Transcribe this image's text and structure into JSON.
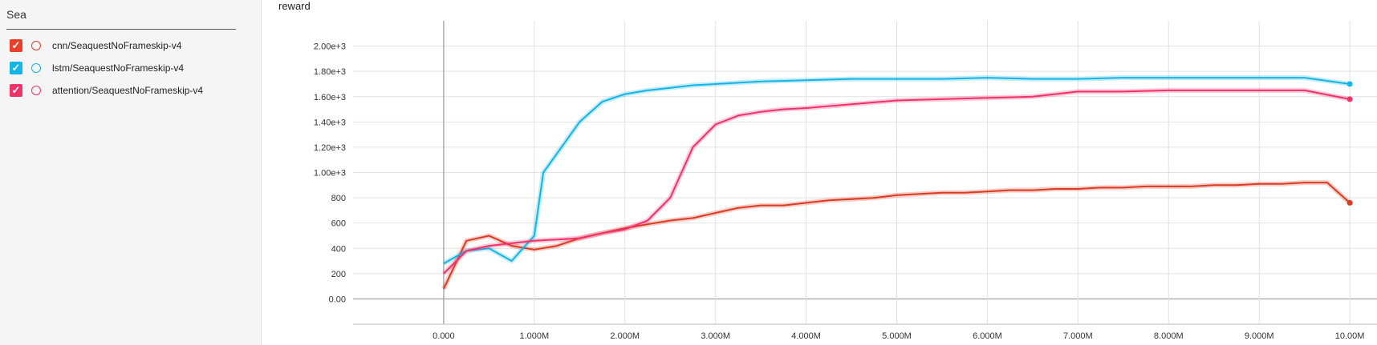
{
  "sidebar": {
    "filter_value": "Sea",
    "runs": [
      {
        "label": "cnn/SeaquestNoFrameskip-v4",
        "color": "#e8402a",
        "checked": true
      },
      {
        "label": "lstm/SeaquestNoFrameskip-v4",
        "color": "#12b5e5",
        "checked": true
      },
      {
        "label": "attention/SeaquestNoFrameskip-v4",
        "color": "#f0346a",
        "checked": true
      }
    ]
  },
  "chart_data": {
    "type": "line",
    "title": "reward",
    "xlim": [
      -1000000,
      10300000
    ],
    "ylim": [
      -200,
      2200
    ],
    "x_ticks": [
      0,
      1000000,
      2000000,
      3000000,
      4000000,
      5000000,
      6000000,
      7000000,
      8000000,
      9000000,
      10000000
    ],
    "x_tick_labels": [
      "0.000",
      "1.000M",
      "2.000M",
      "3.000M",
      "4.000M",
      "5.000M",
      "6.000M",
      "7.000M",
      "8.000M",
      "9.000M",
      "10.00M"
    ],
    "y_ticks": [
      0,
      200,
      400,
      600,
      800,
      1000,
      1200,
      1400,
      1600,
      1800,
      2000
    ],
    "y_tick_labels": [
      "0.00",
      "200",
      "400",
      "600",
      "800",
      "1.00e+3",
      "1.20e+3",
      "1.40e+3",
      "1.60e+3",
      "1.80e+3",
      "2.00e+3"
    ],
    "grid": true,
    "series": [
      {
        "name": "cnn/SeaquestNoFrameskip-v4",
        "color": "#dd3a22",
        "x": [
          0,
          250000,
          500000,
          750000,
          1000000,
          1250000,
          1500000,
          1750000,
          2000000,
          2250000,
          2500000,
          2750000,
          3000000,
          3250000,
          3500000,
          3750000,
          4000000,
          4250000,
          4500000,
          4750000,
          5000000,
          5250000,
          5500000,
          5750000,
          6000000,
          6250000,
          6500000,
          6750000,
          7000000,
          7250000,
          7500000,
          7750000,
          8000000,
          8250000,
          8500000,
          8750000,
          9000000,
          9250000,
          9500000,
          9750000,
          10000000
        ],
        "y": [
          80,
          460,
          500,
          420,
          390,
          420,
          480,
          520,
          560,
          590,
          620,
          640,
          680,
          720,
          740,
          740,
          760,
          780,
          790,
          800,
          820,
          830,
          840,
          840,
          850,
          860,
          860,
          870,
          870,
          880,
          880,
          890,
          890,
          890,
          900,
          900,
          910,
          910,
          920,
          920,
          760
        ]
      },
      {
        "name": "lstm/SeaquestNoFrameskip-v4",
        "color": "#12b5e5",
        "x": [
          0,
          250000,
          500000,
          750000,
          1000000,
          1100000,
          1250000,
          1500000,
          1750000,
          2000000,
          2250000,
          2500000,
          2750000,
          3000000,
          3500000,
          4000000,
          4500000,
          5000000,
          5500000,
          6000000,
          6500000,
          7000000,
          7500000,
          8000000,
          8500000,
          9000000,
          9500000,
          10000000
        ],
        "y": [
          280,
          380,
          400,
          300,
          500,
          1000,
          1150,
          1400,
          1560,
          1620,
          1650,
          1670,
          1690,
          1700,
          1720,
          1730,
          1740,
          1740,
          1740,
          1750,
          1740,
          1740,
          1750,
          1750,
          1750,
          1750,
          1750,
          1700
        ]
      },
      {
        "name": "attention/SeaquestNoFrameskip-v4",
        "color": "#f2316b",
        "x": [
          0,
          250000,
          500000,
          750000,
          1000000,
          1250000,
          1500000,
          1750000,
          2000000,
          2250000,
          2500000,
          2750000,
          3000000,
          3250000,
          3500000,
          3750000,
          4000000,
          4500000,
          5000000,
          5500000,
          6000000,
          6500000,
          7000000,
          7500000,
          8000000,
          8500000,
          9000000,
          9500000,
          10000000
        ],
        "y": [
          200,
          380,
          420,
          440,
          460,
          470,
          480,
          520,
          550,
          620,
          800,
          1200,
          1380,
          1450,
          1480,
          1500,
          1510,
          1540,
          1570,
          1580,
          1590,
          1600,
          1640,
          1640,
          1650,
          1650,
          1650,
          1650,
          1580
        ]
      }
    ]
  }
}
